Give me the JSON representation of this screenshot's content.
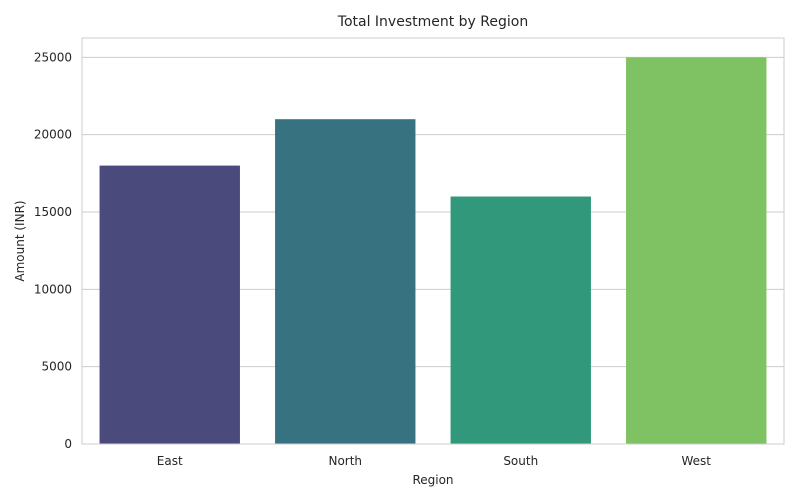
{
  "chart_data": {
    "type": "bar",
    "title": "Total Investment by Region",
    "xlabel": "Region",
    "ylabel": "Amount (INR)",
    "categories": [
      "East",
      "North",
      "South",
      "West"
    ],
    "values": [
      18000,
      21000,
      16000,
      25000
    ],
    "colors": [
      "#4a4a7d",
      "#367280",
      "#32987b",
      "#7ec263"
    ],
    "ylim": [
      0,
      26250
    ],
    "yticks": [
      0,
      5000,
      10000,
      15000,
      20000,
      25000
    ],
    "grid": "y-axis",
    "legend": "none"
  }
}
